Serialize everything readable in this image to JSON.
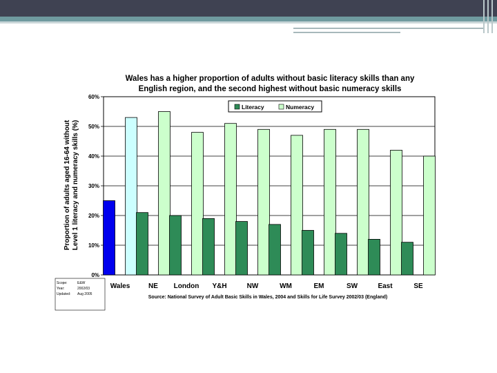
{
  "colors": {
    "header_dark": "#3f4252",
    "header_teal": "#6f9a9f",
    "literacy": "#2e8b57",
    "numeracy": "#ccffcc",
    "wales_literacy": "#0000ee",
    "wales_numeracy": "#ccffff"
  },
  "meta": {
    "scope_label": "Scope:",
    "scope_value": "E&W",
    "year_label": "Year:",
    "year_value": "2002/03",
    "updated_label": "Updated:",
    "updated_value": "Aug 2005"
  },
  "chart_data": {
    "type": "bar",
    "title_line1": "Wales has a higher proportion of adults without basic literacy skills than any",
    "title_line2": "English region, and the second highest without basic numeracy skills",
    "ylabel_line1": "Proportion of adults aged 16-64 without",
    "ylabel_line2": "Level 1 literacy and numeracy skills (%)",
    "xlabel": "",
    "source": "Source: National Survey of Adult Basic Skills in Wales, 2004 and Skills for Life Survey 2002/03 (England)",
    "categories": [
      "Wales",
      "NE",
      "London",
      "Y&H",
      "NW",
      "WM",
      "EM",
      "SW",
      "East",
      "SE"
    ],
    "series": [
      {
        "name": "Literacy",
        "values": [
          25,
          21,
          20,
          19,
          18,
          17,
          15,
          14,
          12,
          11
        ]
      },
      {
        "name": "Numeracy",
        "values": [
          53,
          55,
          48,
          51,
          49,
          47,
          49,
          49,
          42,
          40
        ]
      }
    ],
    "ylim": [
      0,
      60
    ],
    "yticks": [
      "0%",
      "10%",
      "20%",
      "30%",
      "40%",
      "50%",
      "60%"
    ],
    "grid": true,
    "legend_position": "top-right"
  }
}
